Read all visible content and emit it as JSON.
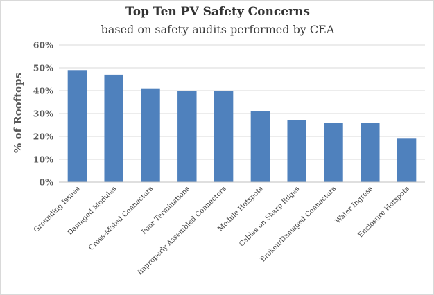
{
  "chart_data": {
    "type": "bar",
    "title": "Top Ten PV Safety Concerns",
    "subtitle": "based on safety audits performed by CEA",
    "ylabel": "% of Rooftops",
    "xlabel": "",
    "ylim": [
      0,
      60
    ],
    "yticks": [
      "0%",
      "10%",
      "20%",
      "30%",
      "40%",
      "50%",
      "60%"
    ],
    "grid": true,
    "legend": "none",
    "bar_color": "#4f81bd",
    "categories": [
      "Grounding Issues",
      "Damaged Modules",
      "Cross-Mated Connectors",
      "Poor Terminations",
      "Improperly Assembled Connectors",
      "Module Hotspots",
      "Cables on Sharp Edges",
      "Broken/Damaged Connectors",
      "Water Ingress",
      "Enclosure Hotspots"
    ],
    "values": [
      49,
      47,
      41,
      40,
      40,
      31,
      27,
      26,
      26,
      19
    ]
  }
}
